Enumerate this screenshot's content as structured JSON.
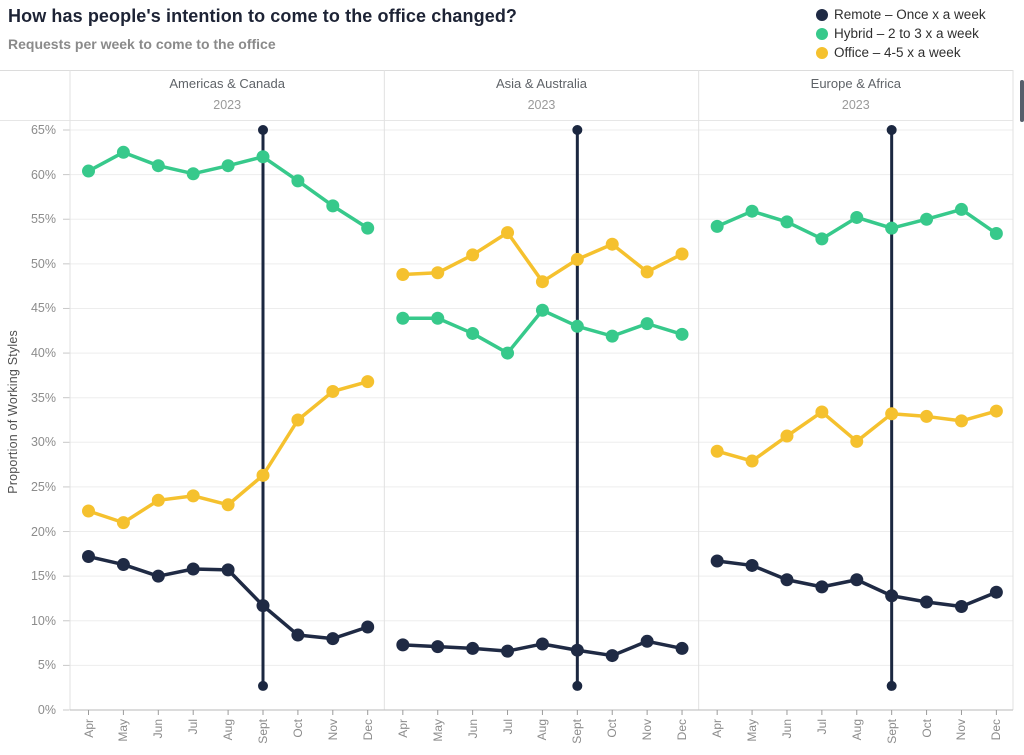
{
  "header": {
    "title": "How has people's intention to come to the office changed?",
    "subtitle": "Requests per week to come to the office"
  },
  "legend": {
    "position": "top-right",
    "items": [
      {
        "label": "Remote – Once x a week",
        "color": "#1F2A44"
      },
      {
        "label": "Hybrid – 2 to 3 x a week",
        "color": "#37C98B"
      },
      {
        "label": "Office – 4-5 x a week",
        "color": "#F5C12E"
      }
    ]
  },
  "chart_data": {
    "type": "line",
    "title": "How has people's intention to come to the office changed?",
    "subtitle": "Requests per week to come to the office",
    "ylabel": "Proportion of Working Styles",
    "ylim": [
      0,
      65
    ],
    "ytick_step": 5,
    "ytick_labels": [
      "0%",
      "5%",
      "10%",
      "15%",
      "20%",
      "25%",
      "30%",
      "35%",
      "40%",
      "45%",
      "50%",
      "55%",
      "60%",
      "65%"
    ],
    "x_categories": [
      "Apr",
      "May",
      "Jun",
      "Jul",
      "Aug",
      "Sept",
      "Oct",
      "Nov",
      "Dec"
    ],
    "grid": true,
    "legend_position": "top-right",
    "reference_line_color": "#1B2740",
    "panels": [
      {
        "title": "Americas & Canada",
        "subtitle": "2023",
        "reference_line": {
          "x": "Sept",
          "y_from": 2.7,
          "y_to": 65
        },
        "series": [
          {
            "name": "Hybrid – 2 to 3 x a week",
            "color": "#37C98B",
            "values": [
              60.4,
              62.5,
              61.0,
              60.1,
              61.0,
              62.0,
              59.3,
              56.5,
              54.0
            ]
          },
          {
            "name": "Office – 4-5 x a week",
            "color": "#F5C12E",
            "values": [
              22.3,
              21.0,
              23.5,
              24.0,
              23.0,
              26.3,
              32.5,
              35.7,
              36.8
            ]
          },
          {
            "name": "Remote – Once x a week",
            "color": "#1F2A44",
            "values": [
              17.2,
              16.3,
              15.0,
              15.8,
              15.7,
              11.7,
              8.4,
              8.0,
              9.3
            ]
          }
        ]
      },
      {
        "title": "Asia & Australia",
        "subtitle": "2023",
        "reference_line": {
          "x": "Sept",
          "y_from": 2.7,
          "y_to": 65
        },
        "series": [
          {
            "name": "Hybrid – 2 to 3 x a week",
            "color": "#37C98B",
            "values": [
              43.9,
              43.9,
              42.2,
              40.0,
              44.8,
              43.0,
              41.9,
              43.3,
              42.1
            ]
          },
          {
            "name": "Office – 4-5 x a week",
            "color": "#F5C12E",
            "values": [
              48.8,
              49.0,
              51.0,
              53.5,
              48.0,
              50.5,
              52.2,
              49.1,
              51.1
            ]
          },
          {
            "name": "Remote – Once x a week",
            "color": "#1F2A44",
            "values": [
              7.3,
              7.1,
              6.9,
              6.6,
              7.4,
              6.7,
              6.1,
              7.7,
              6.9
            ]
          }
        ]
      },
      {
        "title": "Europe & Africa",
        "subtitle": "2023",
        "reference_line": {
          "x": "Sept",
          "y_from": 2.7,
          "y_to": 65
        },
        "series": [
          {
            "name": "Hybrid – 2 to 3 x a week",
            "color": "#37C98B",
            "values": [
              54.2,
              55.9,
              54.7,
              52.8,
              55.2,
              54.0,
              55.0,
              56.1,
              53.4
            ]
          },
          {
            "name": "Office – 4-5 x a week",
            "color": "#F5C12E",
            "values": [
              29.0,
              27.9,
              30.7,
              33.4,
              30.1,
              33.2,
              32.9,
              32.4,
              33.5
            ]
          },
          {
            "name": "Remote – Once x a week",
            "color": "#1F2A44",
            "values": [
              16.7,
              16.2,
              14.6,
              13.8,
              14.6,
              12.8,
              12.1,
              11.6,
              13.2
            ]
          }
        ]
      }
    ]
  }
}
